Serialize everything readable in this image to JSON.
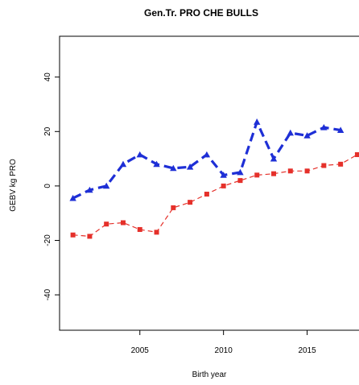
{
  "chart_data": {
    "type": "line",
    "title": "Gen.Tr. PRO CHE BULLS",
    "xlabel": "Birth year",
    "ylabel": "GEBV kg PRO",
    "xlim": [
      2000.2,
      2018.1
    ],
    "ylim": [
      -53,
      55
    ],
    "x_ticks": [
      2005,
      2010,
      2015
    ],
    "y_ticks": [
      -40,
      -20,
      0,
      20,
      40
    ],
    "x_tick_labels": [
      "2005",
      "2010",
      "2015"
    ],
    "y_tick_labels": [
      "-40",
      "-20",
      "0",
      "20",
      "40"
    ],
    "grid": false,
    "legend": "none",
    "series": [
      {
        "color": "#1e2fd6",
        "line_style": "dashed",
        "marker": "triangle",
        "points": [
          [
            2001,
            -4.5
          ],
          [
            2002,
            -1.5
          ],
          [
            2003,
            0
          ],
          [
            2004,
            8
          ],
          [
            2005,
            11.5
          ],
          [
            2006,
            8
          ],
          [
            2007,
            6.5
          ],
          [
            2008,
            7
          ],
          [
            2009,
            11.5
          ],
          [
            2010,
            4
          ],
          [
            2011,
            5
          ],
          [
            2012,
            23.5
          ],
          [
            2013,
            10
          ],
          [
            2014,
            19.5
          ],
          [
            2015,
            18.5
          ],
          [
            2016,
            21.5
          ],
          [
            2017,
            20.5
          ]
        ]
      },
      {
        "color": "#e5302a",
        "line_style": "dashed",
        "marker": "square",
        "points": [
          [
            2001,
            -18
          ],
          [
            2002,
            -18.5
          ],
          [
            2003,
            -14
          ],
          [
            2004,
            -13.5
          ],
          [
            2005,
            -16
          ],
          [
            2006,
            -17
          ],
          [
            2007,
            -8
          ],
          [
            2008,
            -6
          ],
          [
            2009,
            -3
          ],
          [
            2010,
            0
          ],
          [
            2011,
            2
          ],
          [
            2012,
            4
          ],
          [
            2013,
            4.5
          ],
          [
            2014,
            5.5
          ],
          [
            2015,
            5.5
          ],
          [
            2016,
            7.5
          ],
          [
            2017,
            8
          ],
          [
            2018,
            11.5
          ]
        ]
      }
    ]
  }
}
